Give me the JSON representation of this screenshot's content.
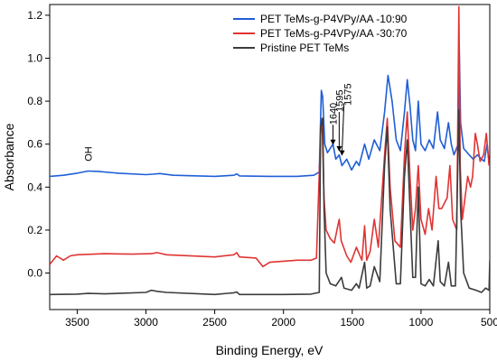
{
  "chart_data": {
    "type": "line",
    "xlabel": "Binding Energy, eV",
    "ylabel": "Absorbance",
    "xlim": [
      3700,
      500
    ],
    "ylim": [
      -0.17,
      1.25
    ],
    "x_reversed": true,
    "x_ticks": [
      3500,
      3000,
      2500,
      2000,
      1500,
      1000,
      500
    ],
    "y_ticks": [
      0.0,
      0.2,
      0.4,
      0.6,
      0.8,
      1.0,
      1.2
    ],
    "x_tick_labels": [
      "3500",
      "3000",
      "2500",
      "2000",
      "1500",
      "1000",
      "500"
    ],
    "y_tick_labels": [
      "0.0",
      "0.2",
      "0.4",
      "0.6",
      "0.8",
      "1.0",
      "1.2"
    ],
    "legend_position": "top-right",
    "series": [
      {
        "name": "PET TeMs-g-P4VPy/AA -10:90",
        "color": "#1f5fd6",
        "points": [
          [
            3700,
            0.45
          ],
          [
            3600,
            0.455
          ],
          [
            3500,
            0.465
          ],
          [
            3420,
            0.475
          ],
          [
            3350,
            0.473
          ],
          [
            3200,
            0.465
          ],
          [
            3000,
            0.458
          ],
          [
            2950,
            0.46
          ],
          [
            2900,
            0.463
          ],
          [
            2800,
            0.455
          ],
          [
            2500,
            0.45
          ],
          [
            2360,
            0.455
          ],
          [
            2340,
            0.462
          ],
          [
            2320,
            0.452
          ],
          [
            2100,
            0.45
          ],
          [
            1900,
            0.45
          ],
          [
            1780,
            0.455
          ],
          [
            1740,
            0.47
          ],
          [
            1725,
            0.85
          ],
          [
            1715,
            0.82
          ],
          [
            1700,
            0.6
          ],
          [
            1680,
            0.56
          ],
          [
            1640,
            0.6
          ],
          [
            1620,
            0.53
          ],
          [
            1595,
            0.55
          ],
          [
            1575,
            0.5
          ],
          [
            1540,
            0.53
          ],
          [
            1505,
            0.48
          ],
          [
            1470,
            0.52
          ],
          [
            1450,
            0.5
          ],
          [
            1410,
            0.6
          ],
          [
            1380,
            0.53
          ],
          [
            1340,
            0.62
          ],
          [
            1300,
            0.57
          ],
          [
            1265,
            0.75
          ],
          [
            1240,
            0.92
          ],
          [
            1210,
            0.8
          ],
          [
            1180,
            0.62
          ],
          [
            1150,
            0.57
          ],
          [
            1120,
            0.75
          ],
          [
            1100,
            0.9
          ],
          [
            1080,
            0.78
          ],
          [
            1060,
            0.62
          ],
          [
            1040,
            0.57
          ],
          [
            1020,
            0.8
          ],
          [
            1000,
            0.6
          ],
          [
            970,
            0.57
          ],
          [
            940,
            0.62
          ],
          [
            910,
            0.58
          ],
          [
            880,
            0.75
          ],
          [
            860,
            0.62
          ],
          [
            830,
            0.58
          ],
          [
            800,
            0.7
          ],
          [
            780,
            0.6
          ],
          [
            760,
            0.55
          ],
          [
            730,
            0.6
          ],
          [
            722,
            1.06
          ],
          [
            712,
            0.7
          ],
          [
            690,
            0.58
          ],
          [
            650,
            0.55
          ],
          [
            620,
            0.53
          ],
          [
            590,
            0.55
          ],
          [
            560,
            0.53
          ],
          [
            540,
            0.52
          ],
          [
            520,
            0.6
          ],
          [
            505,
            0.52
          ]
        ]
      },
      {
        "name": "PET TeMs-g-P4VPy/AA -30:70",
        "color": "#e03434",
        "points": [
          [
            3700,
            0.04
          ],
          [
            3650,
            0.08
          ],
          [
            3600,
            0.06
          ],
          [
            3550,
            0.08
          ],
          [
            3500,
            0.085
          ],
          [
            3300,
            0.09
          ],
          [
            3100,
            0.088
          ],
          [
            2960,
            0.09
          ],
          [
            2920,
            0.095
          ],
          [
            2850,
            0.085
          ],
          [
            2500,
            0.075
          ],
          [
            2360,
            0.085
          ],
          [
            2340,
            0.095
          ],
          [
            2320,
            0.075
          ],
          [
            2200,
            0.07
          ],
          [
            2150,
            0.03
          ],
          [
            2100,
            0.05
          ],
          [
            2000,
            0.055
          ],
          [
            1900,
            0.06
          ],
          [
            1800,
            0.06
          ],
          [
            1760,
            0.07
          ],
          [
            1730,
            0.65
          ],
          [
            1720,
            0.72
          ],
          [
            1705,
            0.35
          ],
          [
            1690,
            0.2
          ],
          [
            1660,
            0.16
          ],
          [
            1630,
            0.14
          ],
          [
            1605,
            0.22
          ],
          [
            1595,
            0.25
          ],
          [
            1580,
            0.15
          ],
          [
            1540,
            0.08
          ],
          [
            1510,
            0.05
          ],
          [
            1470,
            0.12
          ],
          [
            1430,
            0.06
          ],
          [
            1410,
            0.22
          ],
          [
            1395,
            0.06
          ],
          [
            1370,
            0.1
          ],
          [
            1340,
            0.25
          ],
          [
            1310,
            0.12
          ],
          [
            1265,
            0.55
          ],
          [
            1245,
            0.72
          ],
          [
            1225,
            0.4
          ],
          [
            1190,
            0.15
          ],
          [
            1150,
            0.12
          ],
          [
            1120,
            0.55
          ],
          [
            1100,
            0.75
          ],
          [
            1080,
            0.45
          ],
          [
            1060,
            0.2
          ],
          [
            1040,
            0.3
          ],
          [
            1020,
            0.5
          ],
          [
            1000,
            0.25
          ],
          [
            970,
            0.18
          ],
          [
            945,
            0.3
          ],
          [
            920,
            0.2
          ],
          [
            890,
            0.45
          ],
          [
            870,
            0.3
          ],
          [
            850,
            0.3
          ],
          [
            810,
            0.35
          ],
          [
            790,
            0.5
          ],
          [
            770,
            0.25
          ],
          [
            740,
            0.2
          ],
          [
            725,
            1.24
          ],
          [
            715,
            0.5
          ],
          [
            700,
            0.25
          ],
          [
            680,
            0.35
          ],
          [
            660,
            0.45
          ],
          [
            640,
            0.4
          ],
          [
            625,
            0.45
          ],
          [
            605,
            0.65
          ],
          [
            590,
            0.6
          ],
          [
            570,
            0.52
          ],
          [
            545,
            0.55
          ],
          [
            525,
            0.65
          ],
          [
            505,
            0.5
          ]
        ]
      },
      {
        "name": "Pristine PET TeMs",
        "color": "#3c3c3c",
        "points": [
          [
            3700,
            -0.1
          ],
          [
            3500,
            -0.098
          ],
          [
            3420,
            -0.095
          ],
          [
            3300,
            -0.097
          ],
          [
            3000,
            -0.09
          ],
          [
            2960,
            -0.08
          ],
          [
            2920,
            -0.085
          ],
          [
            2850,
            -0.09
          ],
          [
            2500,
            -0.1
          ],
          [
            2360,
            -0.092
          ],
          [
            2340,
            -0.088
          ],
          [
            2320,
            -0.1
          ],
          [
            2000,
            -0.1
          ],
          [
            1800,
            -0.098
          ],
          [
            1740,
            -0.09
          ],
          [
            1730,
            0.68
          ],
          [
            1715,
            0.72
          ],
          [
            1705,
            0.3
          ],
          [
            1690,
            0.0
          ],
          [
            1660,
            -0.05
          ],
          [
            1620,
            -0.06
          ],
          [
            1578,
            -0.02
          ],
          [
            1560,
            -0.07
          ],
          [
            1505,
            -0.08
          ],
          [
            1470,
            -0.05
          ],
          [
            1450,
            -0.07
          ],
          [
            1410,
            0.05
          ],
          [
            1395,
            -0.07
          ],
          [
            1370,
            -0.06
          ],
          [
            1340,
            0.03
          ],
          [
            1300,
            -0.04
          ],
          [
            1265,
            0.5
          ],
          [
            1245,
            0.68
          ],
          [
            1225,
            0.3
          ],
          [
            1180,
            -0.05
          ],
          [
            1150,
            -0.05
          ],
          [
            1120,
            0.45
          ],
          [
            1100,
            0.62
          ],
          [
            1080,
            0.3
          ],
          [
            1060,
            -0.02
          ],
          [
            1040,
            -0.02
          ],
          [
            1020,
            0.4
          ],
          [
            1000,
            -0.05
          ],
          [
            970,
            -0.06
          ],
          [
            940,
            -0.03
          ],
          [
            910,
            -0.06
          ],
          [
            875,
            0.15
          ],
          [
            860,
            -0.04
          ],
          [
            830,
            -0.06
          ],
          [
            800,
            0.05
          ],
          [
            780,
            -0.06
          ],
          [
            750,
            -0.06
          ],
          [
            725,
            0.76
          ],
          [
            712,
            0.3
          ],
          [
            690,
            0.0
          ],
          [
            650,
            -0.07
          ],
          [
            600,
            -0.08
          ],
          [
            560,
            -0.09
          ],
          [
            530,
            -0.07
          ],
          [
            505,
            -0.08
          ],
          [
            500,
            0.06
          ]
        ]
      }
    ],
    "annotations": [
      {
        "text": "OH",
        "x": 3420,
        "y": 0.52,
        "rotate": -90
      },
      {
        "text": "1640",
        "x": 1640,
        "y": 0.69,
        "rotate": -90
      },
      {
        "text": "1595",
        "x": 1595,
        "y": 0.75,
        "rotate": -90
      },
      {
        "text": "1575",
        "x": 1535,
        "y": 0.78,
        "rotate": -90
      }
    ],
    "arrows": [
      {
        "x1": 1640,
        "y1": 0.69,
        "x2": 1640,
        "y2": 0.6
      },
      {
        "x1": 1595,
        "y1": 0.75,
        "x2": 1595,
        "y2": 0.57
      },
      {
        "x1": 1560,
        "y1": 0.79,
        "x2": 1575,
        "y2": 0.55
      }
    ]
  }
}
